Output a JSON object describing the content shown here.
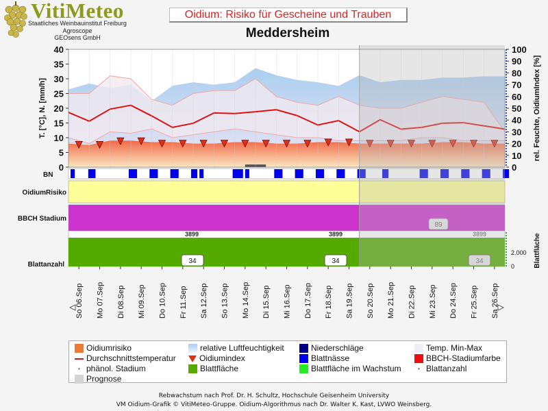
{
  "header": {
    "logo_title": "VitiMeteo",
    "logo_lines": [
      "Staatliches Weinbauinstitut Freiburg",
      "Agroscope",
      "GEOsens GmbH"
    ],
    "chart_title": "Oidium: Risiko für Gescheine und Trauben",
    "station": "Meddersheim"
  },
  "chart_data": {
    "type": "line",
    "days": [
      "So 06.Sep",
      "Mo 07.Sep",
      "Di 08.Sep",
      "Mi 09.Sep",
      "Do 10.Sep",
      "Fr 11.Sep",
      "Sa 12.Sep",
      "So 13.Sep",
      "Mo 14.Sep",
      "Di 15.Sep",
      "Mi 16.Sep",
      "Do 17.Sep",
      "Fr 18.Sep",
      "Sa 19.Sep",
      "So 20.Sep",
      "Mo 21.Sep",
      "Di 22.Sep",
      "Mi 23.Sep",
      "Do 24.Sep",
      "Fr 25.Sep",
      "Sa 26.Sep"
    ],
    "forecast_from_index": 14,
    "left_axis": {
      "label": "T. [°C], N. [mm/h]",
      "range": [
        0,
        40
      ],
      "ticks": [
        0,
        5,
        10,
        15,
        20,
        25,
        30,
        35,
        40
      ]
    },
    "right_axis": {
      "label": "rel. Feuchte, OidiumIndex [%]",
      "range": [
        0,
        100
      ],
      "ticks": [
        0,
        10,
        20,
        30,
        40,
        50,
        60,
        70,
        80,
        90,
        100
      ]
    },
    "humidity_x": [
      0,
      1,
      2,
      3,
      4,
      5,
      6,
      7,
      8,
      9,
      10,
      11,
      12,
      13,
      14,
      15,
      16,
      17,
      18,
      19,
      20,
      21
    ],
    "humidity_upper": [
      66,
      71,
      67,
      70,
      56,
      69,
      72,
      70,
      72,
      84,
      78,
      74,
      72,
      69,
      78,
      72,
      74,
      74,
      76,
      76,
      77,
      77
    ],
    "humidity_lower": [
      54,
      60,
      56,
      62,
      49,
      58,
      63,
      61,
      63,
      70,
      66,
      62,
      60,
      58,
      66,
      61,
      63,
      62,
      64,
      65,
      66,
      64
    ],
    "temp_x": [
      0,
      1,
      2,
      3,
      4,
      5,
      6,
      7,
      8,
      9,
      10,
      11,
      12,
      13,
      14,
      15,
      16,
      17,
      18,
      19,
      20,
      21
    ],
    "temp_avg": [
      18.6,
      15.6,
      19.7,
      21.0,
      17.4,
      13.5,
      14.9,
      18.4,
      18.2,
      18.8,
      19.5,
      17.5,
      14.3,
      15.8,
      12.0,
      16.1,
      12.9,
      13.5,
      14.9,
      15.1,
      14.0,
      12.9
    ],
    "temp_max": [
      25,
      25,
      31,
      30,
      23,
      21,
      25,
      26,
      26,
      30,
      24,
      22,
      21,
      24,
      21,
      20,
      20,
      22,
      24,
      23,
      22,
      12
    ],
    "temp_min": [
      10,
      8,
      12,
      11.5,
      13,
      10,
      11,
      12,
      13,
      12,
      11,
      10,
      10,
      9,
      9,
      9,
      9,
      10,
      10,
      9,
      9,
      9
    ],
    "oidium_risk": [
      8,
      7.5,
      9,
      9,
      8.5,
      8.5,
      8,
      8,
      8.5,
      8.5,
      8,
      8,
      8.5,
      8.5,
      8,
      8,
      8,
      8,
      8.5,
      8.5,
      8,
      8
    ],
    "oidium_index": [
      19,
      19,
      22,
      22,
      20,
      20,
      20,
      20,
      20,
      20,
      20,
      20,
      21,
      21,
      20,
      20,
      20,
      20,
      20,
      20,
      20
    ],
    "bn_label": "BN",
    "bn_blocks": [
      [
        0.1,
        0.3
      ],
      [
        0.95,
        1.3
      ],
      [
        2.9,
        3.3
      ],
      [
        3.9,
        4.3
      ],
      [
        4.9,
        5.3
      ],
      [
        5.9,
        6.2
      ],
      [
        6.3,
        6.5
      ],
      [
        7.9,
        8.4
      ],
      [
        8.5,
        8.7
      ],
      [
        9.9,
        10.3
      ],
      [
        10.9,
        11.3
      ],
      [
        11.9,
        12.3
      ],
      [
        12.9,
        13.3
      ],
      [
        13.9,
        14.3
      ],
      [
        15.1,
        15.4
      ],
      [
        16.9,
        17.3
      ],
      [
        17.9,
        18.3
      ],
      [
        18.9,
        19.3
      ],
      [
        19.9,
        20.3
      ],
      [
        20.9,
        21.2
      ]
    ],
    "oidium_risiko_label": "OidiumRisiko",
    "oidium_risiko_color": "#ffff99",
    "bbch_label": "BBCH Stadium",
    "bbch_color": "#cc33cc",
    "bbch_forecast_value": "89",
    "blatt_left_label": "Blattanzahl",
    "blatt_right_label": "Blattfläche",
    "blattflaeche_values": [
      "3899",
      "3899",
      "3899"
    ],
    "blattanzahl_values": [
      "34",
      "34",
      "34"
    ],
    "blatt_axis_ticks": [
      "2.000",
      "0"
    ]
  },
  "colors": {
    "risk": "#f5805a",
    "humidity": "#a8cdef",
    "avg_temp": "#e01010",
    "index_marker": "#e03010",
    "leaf_area": "#55aa00",
    "wetness": "#0000ee",
    "forecast": "#cccccc"
  },
  "legend": {
    "items": [
      {
        "label": "Oidiumrisiko",
        "icon": "orange-square",
        "color": "#f07830"
      },
      {
        "label": "relative Luftfeuchtigkeit",
        "icon": "blue-gradient",
        "color": "#a8cdef"
      },
      {
        "label": "Niederschläge",
        "icon": "navy-square",
        "color": "#000080"
      },
      {
        "label": "Temp. Min-Max",
        "icon": "pale-square",
        "color": "#f0eef4"
      },
      {
        "label": "Durchschnittstemperatur",
        "icon": "red-line",
        "color": "#e01010"
      },
      {
        "label": "Oidiumindex",
        "icon": "red-triangle",
        "color": "#e03010"
      },
      {
        "label": "Blattnässe",
        "icon": "blue-square",
        "color": "#0000ee"
      },
      {
        "label": "BBCH-Stadiumfarbe",
        "icon": "red-square",
        "color": "#ee1010"
      },
      {
        "label": "phänol. Stadium",
        "icon": "dot",
        "color": "#555555"
      },
      {
        "label": "Blattfläche",
        "icon": "green-square",
        "color": "#55aa00"
      },
      {
        "label": "Blattfläche im Wachstum",
        "icon": "lime-square",
        "color": "#22ee22"
      },
      {
        "label": "Blattanzahl",
        "icon": "dot",
        "color": "#555555"
      },
      {
        "label": "Prognose",
        "icon": "grey-square",
        "color": "#d4d4d4"
      }
    ]
  },
  "footer": {
    "line1": "Rebwachstum nach Prof. Dr. H. Schultz, Hochschule Geisenheim University",
    "line2": "VM Oidium-Grafik © VitiMeteo-Gruppe. Oidium-Algorithmus nach Dr. Walter K. Kast, LVWO Weinsberg."
  }
}
